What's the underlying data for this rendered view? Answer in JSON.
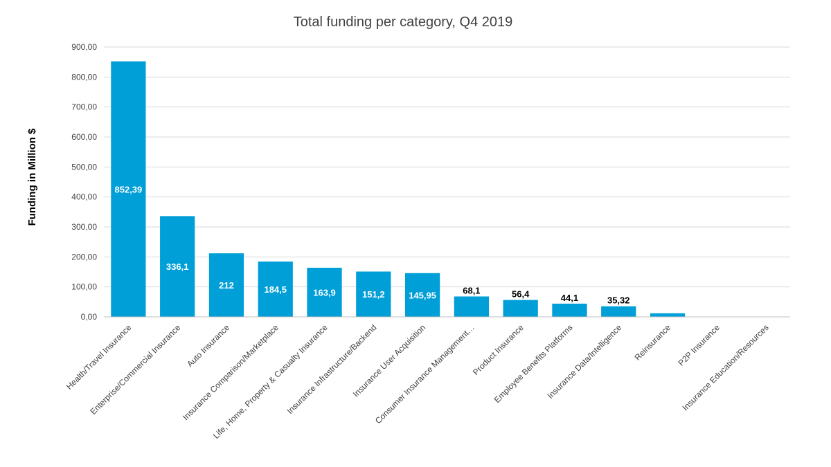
{
  "chart_data": {
    "type": "bar",
    "title": "Total funding per category, Q4 2019",
    "xlabel": "",
    "ylabel": "Funding in Million $",
    "ylim": [
      0,
      900
    ],
    "ytick_step": 100,
    "ytick_labels": [
      "0,00",
      "100,00",
      "200,00",
      "300,00",
      "400,00",
      "500,00",
      "600,00",
      "700,00",
      "800,00",
      "900,00"
    ],
    "grid": true,
    "bar_color": "#009fd8",
    "categories": [
      "Health/Travel Insurance",
      "Enterprise/Commercial Insurance",
      "Auto Insurance",
      "Insurance Comparison/Marketplace",
      "Life, Home, Property & Casualty Insurance",
      "Insurance Infrastructure/Backend",
      "Insurance User Acquisition",
      "Consumer Insurance Management…",
      "Product Insurance",
      "Employee Benefits Platforms",
      "Insurance Data/Intelligence",
      "Reinsurance",
      "P2P Insurance",
      "Insurance Education/Resources"
    ],
    "values": [
      852.39,
      336.1,
      212,
      184.5,
      163.9,
      151.2,
      145.95,
      68.1,
      56.4,
      44.1,
      35.32,
      12,
      0,
      0
    ],
    "data_labels": [
      "852,39",
      "336,1",
      "212",
      "184,5",
      "163,9",
      "151,2",
      "145,95",
      "68,1",
      "56,4",
      "44,1",
      "35,32",
      null,
      null,
      null
    ],
    "label_inside": [
      true,
      true,
      true,
      true,
      true,
      true,
      true,
      false,
      false,
      false,
      false,
      false,
      false,
      false
    ]
  }
}
